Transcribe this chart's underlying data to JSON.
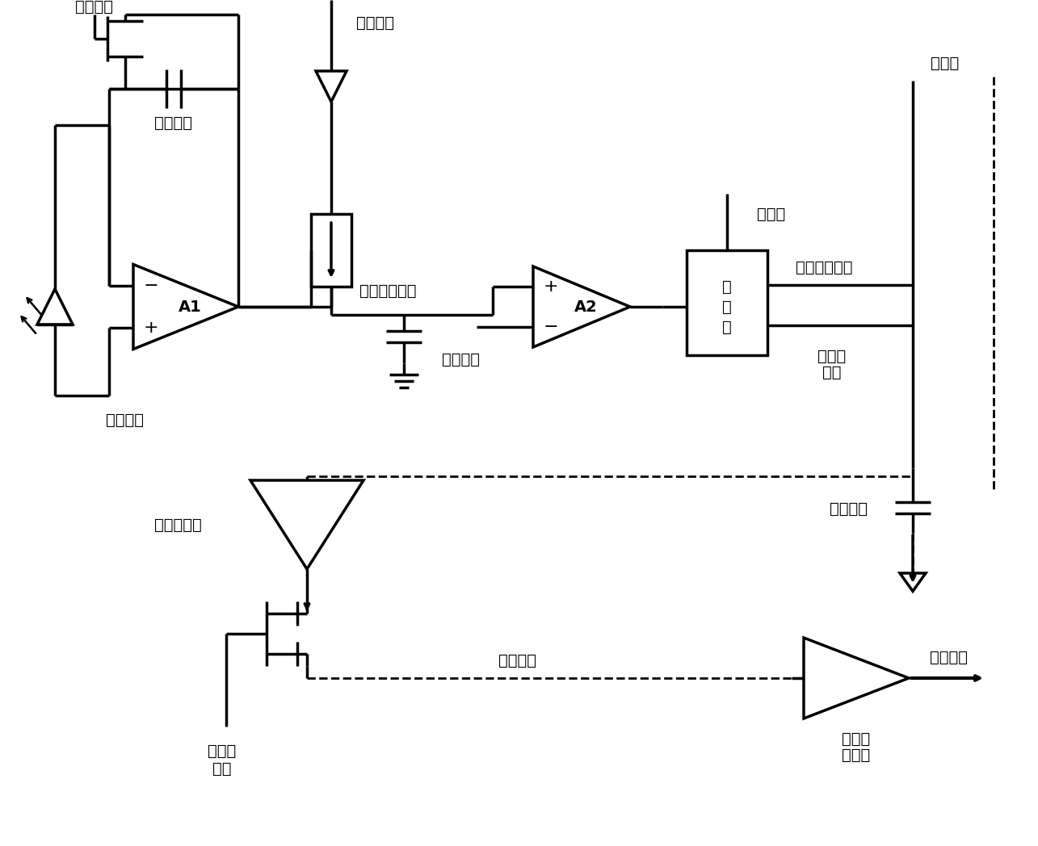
{
  "bg_color": "#ffffff",
  "line_color": "#000000",
  "text_color": "#000000",
  "lw": 2.5,
  "font_size": 14,
  "labels": {
    "reset_signal": "复位信号",
    "sample_signal": "采样信号",
    "integ_cap": "积分电容",
    "ref_voltage": "参考电压",
    "analog_out": "模拟电压输出",
    "compare_signal": "比较信号",
    "write_signal": "写信号",
    "latch_line1": "锁",
    "latch_line2": "存",
    "latch_line3": "器",
    "digital_out": "数字信号输出",
    "col_bus": "列总线",
    "row_select_line1": "行选通",
    "row_select_line2": "信号",
    "sense_amp": "感应放大器",
    "bus_cap": "总线电容",
    "output_bus": "输出总线",
    "output_port": "输出端口",
    "col_select_line1": "列选通",
    "col_select_line2": "信号",
    "output_buffer_line1": "输出级",
    "output_buffer_line2": "缓冲器",
    "A1": "A1",
    "A2": "A2"
  }
}
